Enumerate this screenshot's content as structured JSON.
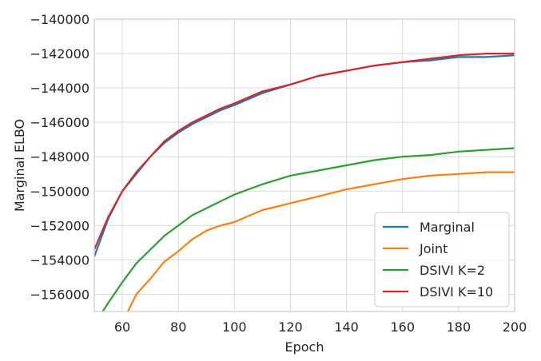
{
  "chart_data": {
    "type": "line",
    "title": "",
    "xlabel": "Epoch",
    "ylabel": "Marginal ELBO",
    "xlim": [
      50,
      200
    ],
    "ylim": [
      -157000,
      -140000
    ],
    "xticks": [
      60,
      80,
      100,
      120,
      140,
      160,
      180,
      200
    ],
    "yticks": [
      -156000,
      -154000,
      -152000,
      -150000,
      -148000,
      -146000,
      -144000,
      -142000,
      -140000
    ],
    "grid": true,
    "legend_position": "lower-right",
    "series": [
      {
        "name": "Marginal",
        "color": "#1f77b4",
        "x": [
          50,
          55,
          60,
          65,
          70,
          75,
          80,
          85,
          90,
          95,
          100,
          110,
          120,
          130,
          140,
          150,
          160,
          170,
          180,
          190,
          200
        ],
        "y": [
          -153800,
          -151600,
          -150000,
          -149000,
          -148000,
          -147200,
          -146600,
          -146100,
          -145700,
          -145300,
          -145000,
          -144300,
          -143800,
          -143300,
          -143000,
          -142700,
          -142500,
          -142400,
          -142200,
          -142200,
          -142100
        ]
      },
      {
        "name": "Joint",
        "color": "#ff7f0e",
        "x": [
          62,
          65,
          70,
          75,
          80,
          85,
          90,
          95,
          100,
          110,
          120,
          130,
          140,
          150,
          160,
          170,
          180,
          190,
          200
        ],
        "y": [
          -157000,
          -156000,
          -155100,
          -154100,
          -153500,
          -152800,
          -152300,
          -152000,
          -151800,
          -151100,
          -150700,
          -150300,
          -149900,
          -149600,
          -149300,
          -149100,
          -149000,
          -148900,
          -148900
        ]
      },
      {
        "name": "DSIVI K=2",
        "color": "#2ca02c",
        "x": [
          53,
          55,
          60,
          65,
          70,
          75,
          80,
          85,
          90,
          95,
          100,
          110,
          120,
          130,
          140,
          150,
          160,
          170,
          180,
          190,
          200
        ],
        "y": [
          -157000,
          -156500,
          -155300,
          -154200,
          -153400,
          -152600,
          -152000,
          -151400,
          -151000,
          -150600,
          -150200,
          -149600,
          -149100,
          -148800,
          -148500,
          -148200,
          -148000,
          -147900,
          -147700,
          -147600,
          -147500
        ]
      },
      {
        "name": "DSIVI K=10",
        "color": "#d62728",
        "x": [
          50,
          55,
          60,
          65,
          70,
          75,
          80,
          85,
          90,
          95,
          100,
          110,
          120,
          130,
          140,
          150,
          160,
          170,
          180,
          190,
          200
        ],
        "y": [
          -153400,
          -151500,
          -150000,
          -148900,
          -148000,
          -147100,
          -146500,
          -146000,
          -145600,
          -145200,
          -144900,
          -144200,
          -143800,
          -143300,
          -143000,
          -142700,
          -142500,
          -142300,
          -142100,
          -142000,
          -142000
        ]
      }
    ]
  }
}
